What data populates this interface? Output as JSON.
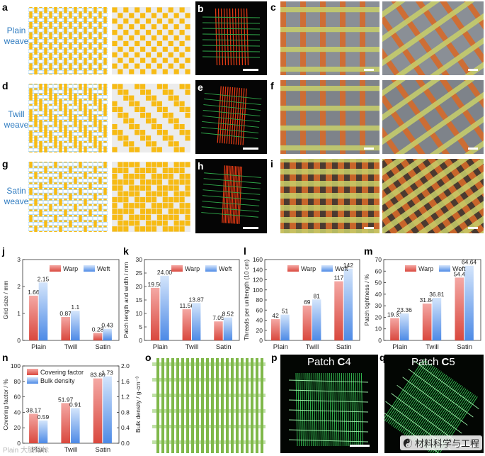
{
  "panel_labels": {
    "a": "a",
    "b": "b",
    "c": "c",
    "d": "d",
    "e": "e",
    "f": "f",
    "g": "g",
    "h": "h",
    "i": "i",
    "j": "j",
    "k": "k",
    "l": "l",
    "m": "m",
    "n": "n",
    "o": "o",
    "p": "p",
    "q": "q"
  },
  "weave_labels": {
    "plain": [
      "Plain",
      "weave"
    ],
    "twill": [
      "Twill",
      "weave"
    ],
    "satin": [
      "Satin",
      "weave"
    ]
  },
  "colors": {
    "weft_blue": "#a8d4f0",
    "warp_yellow": "#f7bb14",
    "warp_bar_top": "#f4a8a4",
    "warp_bar_bottom": "#d9483e",
    "weft_bar_top": "#d4e5fb",
    "weft_bar_bottom": "#4d8ae6",
    "fiber_red": "#e03a14",
    "fiber_green": "#2fa84a",
    "patch_green": "#39d85a",
    "grid_green": "#7fb84a"
  },
  "patches": {
    "p": {
      "prefix": "Patch ",
      "bold": "C",
      "suffix": "4"
    },
    "q": {
      "prefix": "Patch ",
      "bold": "C",
      "suffix": "5"
    }
  },
  "watermark": "材料科学与工程",
  "credit": "Plain 大脑路标",
  "chart_data": [
    {
      "id": "j",
      "type": "bar",
      "ylabel": "Grid size / mm",
      "ylim": [
        0,
        3
      ],
      "yticks": [
        0,
        1,
        2,
        3
      ],
      "categories": [
        "Plain",
        "Twill",
        "Satin"
      ],
      "series": [
        {
          "name": "Warp",
          "values": [
            1.66,
            0.87,
            0.28
          ],
          "labels": [
            "1.66",
            "0.87",
            "0.28"
          ]
        },
        {
          "name": "Weft",
          "values": [
            2.15,
            1.1,
            0.43
          ],
          "labels": [
            "2.15",
            "1.1",
            "0.43"
          ]
        }
      ]
    },
    {
      "id": "k",
      "type": "bar",
      "ylabel": "Patch length and width / mm",
      "ylim": [
        0,
        30
      ],
      "yticks": [
        0,
        5,
        10,
        15,
        20,
        25,
        30
      ],
      "categories": [
        "Plain",
        "Twill",
        "Satin"
      ],
      "series": [
        {
          "name": "Warp",
          "values": [
            19.5,
            11.56,
            7.05
          ],
          "labels": [
            "19.50",
            "11.56",
            "7.05"
          ]
        },
        {
          "name": "Weft",
          "values": [
            24.0,
            13.87,
            8.52
          ],
          "labels": [
            "24.00",
            "13.87",
            "8.52"
          ]
        }
      ]
    },
    {
      "id": "l",
      "type": "bar",
      "ylabel": "Threads per unitength (10 cm)",
      "ylim": [
        0,
        160
      ],
      "yticks": [
        0,
        20,
        40,
        60,
        80,
        100,
        120,
        140,
        160
      ],
      "categories": [
        "Plain",
        "Twill",
        "Satin"
      ],
      "series": [
        {
          "name": "Warp",
          "values": [
            42,
            69,
            117
          ],
          "labels": [
            "42",
            "69",
            "117"
          ]
        },
        {
          "name": "Weft",
          "values": [
            51,
            81,
            142
          ],
          "labels": [
            "51",
            "81",
            "142"
          ]
        }
      ]
    },
    {
      "id": "m",
      "type": "bar",
      "ylabel": "Patch tightness / %",
      "ylim": [
        0,
        70
      ],
      "yticks": [
        0,
        10,
        20,
        30,
        40,
        50,
        60,
        70
      ],
      "categories": [
        "Plain",
        "Twill",
        "Satin"
      ],
      "series": [
        {
          "name": "Warp",
          "values": [
            19.31,
            31.84,
            54.4
          ],
          "labels": [
            "19.31",
            "31.84",
            "54.4"
          ]
        },
        {
          "name": "Weft",
          "values": [
            23.36,
            36.81,
            64.64
          ],
          "labels": [
            "23.36",
            "36.81",
            "64.64"
          ]
        }
      ]
    },
    {
      "id": "n",
      "type": "bar",
      "ylabel": "Covering factor / %",
      "ylim": [
        0,
        100
      ],
      "yticks": [
        0,
        20,
        40,
        60,
        80,
        100
      ],
      "y2label": "Bulk density / g·cm⁻³",
      "y2lim": [
        0,
        2.0
      ],
      "y2ticks": [
        "0.0",
        "0.4",
        "0.8",
        "1.2",
        "1.6",
        "2.0"
      ],
      "categories": [
        "Plain",
        "Twill",
        "Satin"
      ],
      "series": [
        {
          "name": "Covering factor",
          "axis": "left",
          "values": [
            38.17,
            51.97,
            83.86
          ],
          "labels": [
            "38.17",
            "51.97",
            "83.86"
          ]
        },
        {
          "name": "Bulk density",
          "axis": "right",
          "values": [
            0.59,
            0.91,
            1.73
          ],
          "labels": [
            "0.59",
            "0.91",
            "1.73"
          ]
        }
      ]
    }
  ]
}
